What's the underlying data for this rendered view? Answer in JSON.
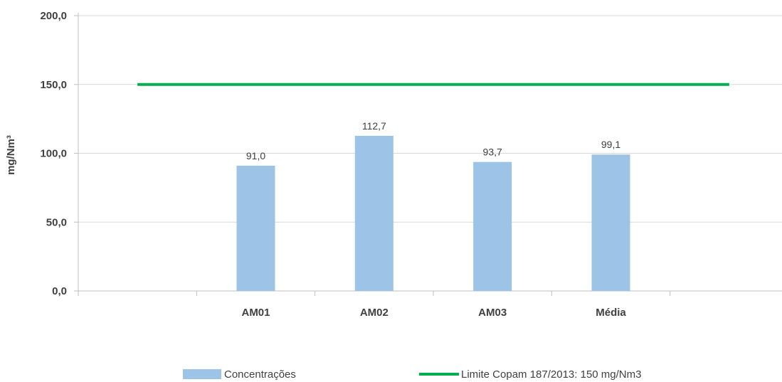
{
  "chart_data": {
    "type": "bar",
    "categories": [
      "",
      "AM01",
      "AM02",
      "AM03",
      "Média",
      ""
    ],
    "series": [
      {
        "name": "Concentrações",
        "type": "bar",
        "values": [
          null,
          91.0,
          112.7,
          93.7,
          99.1,
          null
        ],
        "labels": [
          "",
          "91,0",
          "112,7",
          "93,7",
          "99,1",
          ""
        ],
        "color": "#9dc3e6"
      },
      {
        "name": "Limite Copam 187/2013: 150 mg/Nm3",
        "type": "line",
        "values": [
          150,
          150,
          150,
          150,
          150,
          150
        ],
        "color": "#00b050"
      }
    ],
    "ylabel": "mg/Nm³",
    "xlabel": "",
    "ylim": [
      0,
      200
    ],
    "yticks": [
      0,
      50,
      100,
      150,
      200
    ],
    "ytick_labels": [
      "0,0",
      "50,0",
      "100,0",
      "150,0",
      "200,0"
    ],
    "grid": true,
    "legend_position": "bottom"
  }
}
